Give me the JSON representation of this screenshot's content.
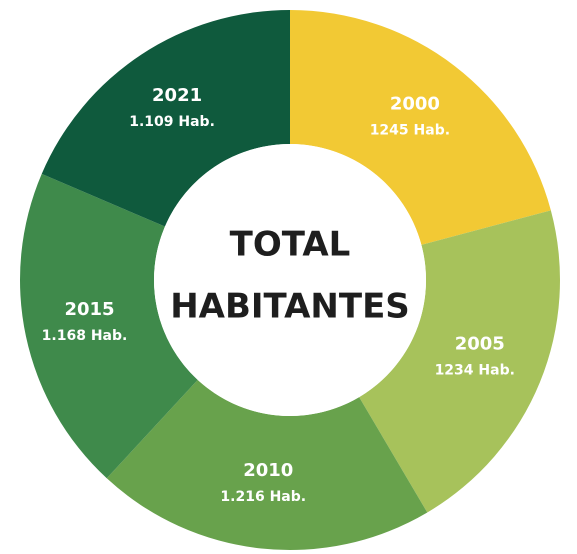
{
  "chart_data": {
    "type": "donut",
    "center_text": [
      "TOTAL",
      "HABITANTES"
    ],
    "categories": [
      "2000",
      "2005",
      "2010",
      "2015",
      "2021"
    ],
    "values": [
      1245,
      1234,
      1216,
      1168,
      1109
    ],
    "value_labels": [
      "1245 Hab.",
      "1234 Hab.",
      "1.216 Hab.",
      "1.168 Hab.",
      "1.109 Hab."
    ],
    "colors": [
      "#f2c934",
      "#a7c25b",
      "#68a24c",
      "#3f8a4b",
      "#0f5a3d"
    ]
  }
}
